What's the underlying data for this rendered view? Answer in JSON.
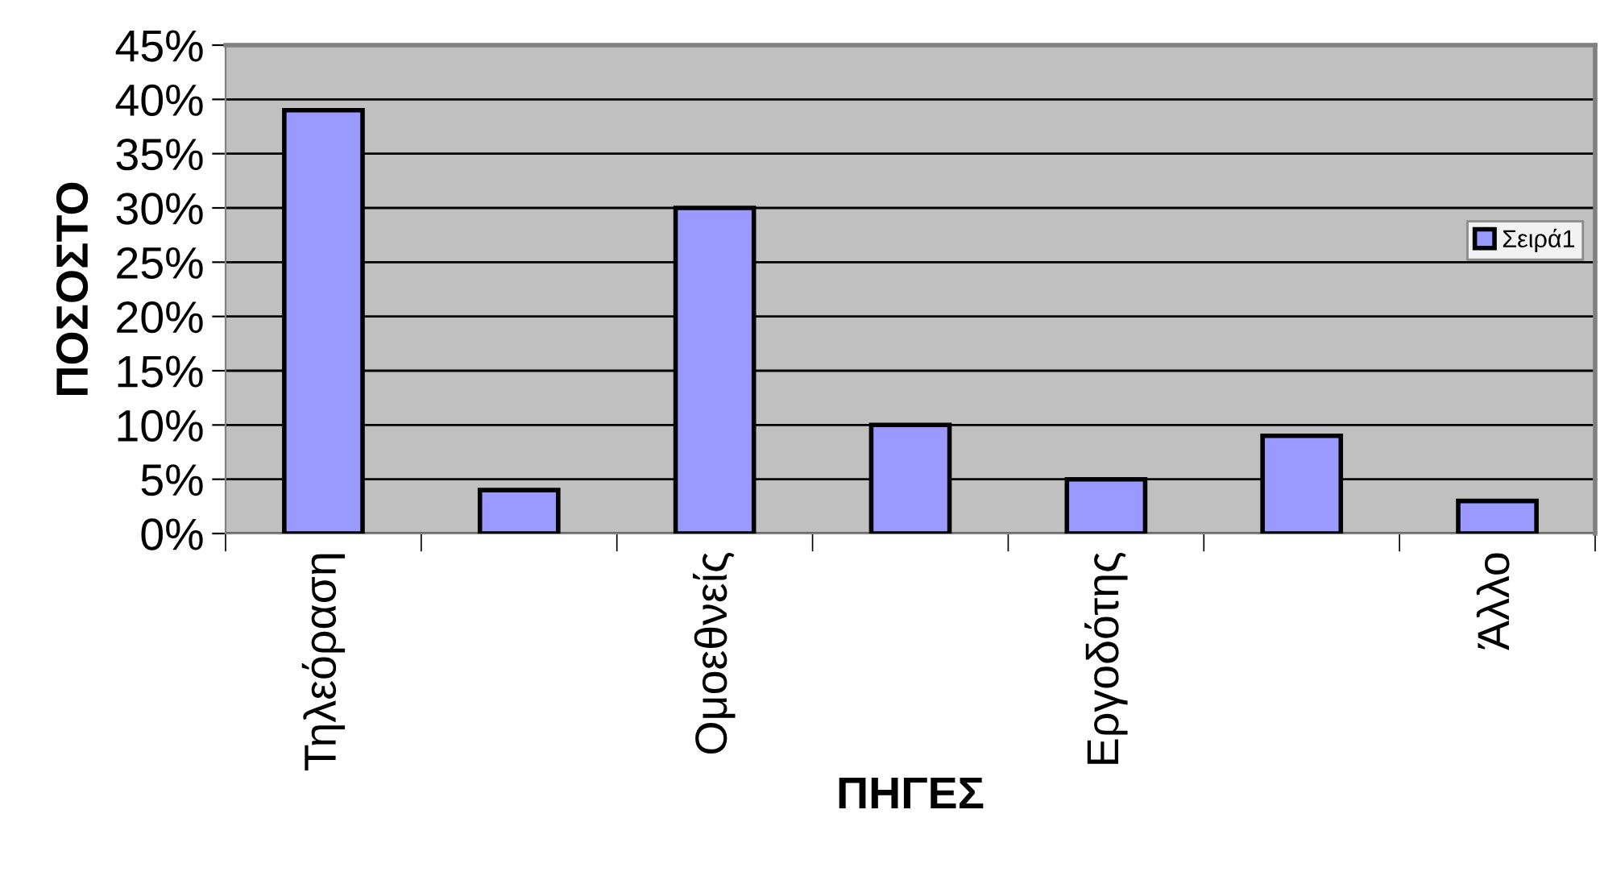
{
  "chart_data": {
    "type": "bar",
    "xlabel": "ΠΗΓΕΣ",
    "ylabel": "ΠΟΣΟΣΤΟ",
    "categories": [
      "Τηλεόραση",
      null,
      "Ομοεθνείς",
      null,
      "Εργοδότης",
      null,
      "Άλλο"
    ],
    "series": [
      {
        "name": "Σειρά1",
        "color": "#9999ff",
        "values": [
          39,
          4,
          30,
          10,
          5,
          9,
          3
        ]
      }
    ],
    "ylim": [
      0,
      45
    ],
    "yticks": [
      {
        "value": 0,
        "label": "0%"
      },
      {
        "value": 5,
        "label": "5%"
      },
      {
        "value": 10,
        "label": "10%"
      },
      {
        "value": 15,
        "label": "15%"
      },
      {
        "value": 20,
        "label": "20%"
      },
      {
        "value": 25,
        "label": "25%"
      },
      {
        "value": 30,
        "label": "30%"
      },
      {
        "value": 35,
        "label": "35%"
      },
      {
        "value": 40,
        "label": "40%"
      },
      {
        "value": 45,
        "label": "45%"
      }
    ],
    "grid": "y",
    "legend": "right"
  }
}
